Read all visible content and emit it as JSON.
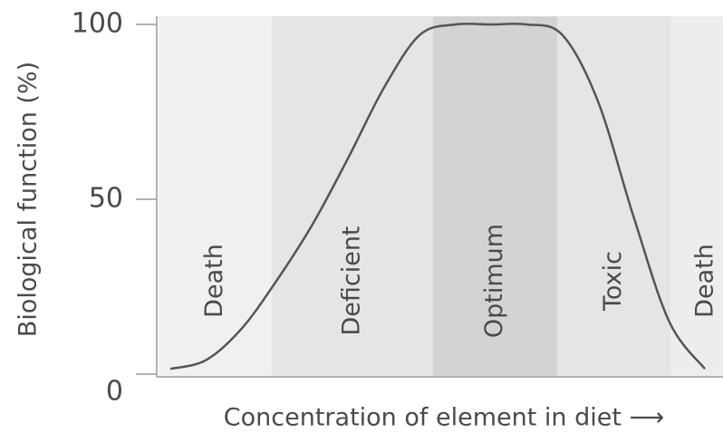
{
  "chart_data": {
    "type": "line",
    "ylabel": "Biological function (%)",
    "xlabel": "Concentration of element in diet ⟶",
    "ylim": [
      0,
      100
    ],
    "yticks": [
      0,
      50,
      100
    ],
    "zones": [
      "Death",
      "Deficient",
      "Optimum",
      "Toxic",
      "Death"
    ],
    "zone_colors": [
      "#f0f0f0",
      "#e5e5e5",
      "#d3d3d3",
      "#e5e5e5",
      "#ededed"
    ],
    "categories": [
      null,
      null,
      null,
      null,
      null,
      null,
      null,
      null,
      null,
      null,
      null,
      null,
      null,
      null,
      null,
      null
    ],
    "series": [
      {
        "name": null,
        "color": "#555555",
        "values": [
          1.5,
          4,
          13,
          27,
          43,
          62,
          82,
          97,
          100,
          100,
          100,
          97,
          78,
          45,
          15,
          1.5
        ]
      }
    ]
  }
}
